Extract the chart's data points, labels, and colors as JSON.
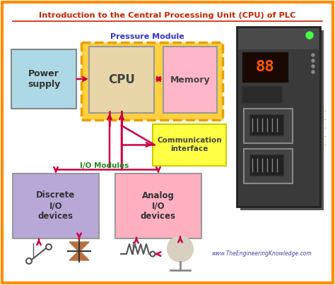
{
  "title": "Introduction to the Central Processing Unit (CPU) of PLC",
  "bg_color": "#ffffff",
  "border_color": "#ff8c00",
  "pressure_module_label": "Pressure Module",
  "pressure_module_border": "#e8a000",
  "pressure_module_fill": "#ffd040",
  "cpu_label": "CPU",
  "cpu_color": "#e8d5a8",
  "memory_label": "Memory",
  "memory_color": "#ffb6c8",
  "power_supply_label": "Power\nsupply",
  "power_supply_color": "#add8e6",
  "comm_label": "Communication\ninterface",
  "comm_color": "#ffff44",
  "comm_border": "#cccc00",
  "io_modules_label": "I/O Modules",
  "discrete_label": "Discrete\nI/O\ndevices",
  "discrete_color": "#b8a8d8",
  "analog_label": "Analog\nI/O\ndevices",
  "analog_color": "#ffb0c0",
  "arrow_color": "#cc0044",
  "io_label_color": "#228b22",
  "website": "www.TheEngineeringKnowledge.com",
  "pressure_label_color": "#3333cc",
  "title_color": "#cc2200",
  "plc_body_color": "#3a3a3a",
  "plc_display_bg": "#1a0800",
  "plc_display_text": "#ff5500",
  "plc_port_color": "#555555",
  "plc_port_inner": "#222222"
}
